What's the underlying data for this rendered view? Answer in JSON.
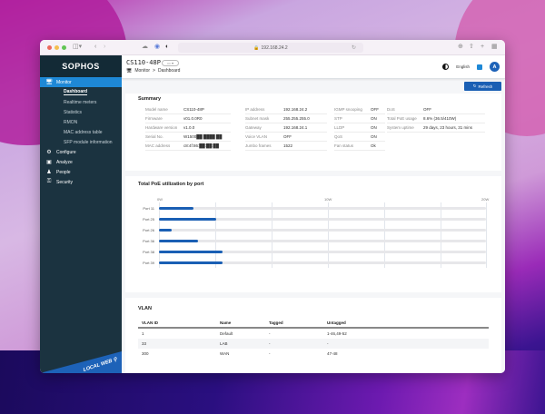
{
  "browser": {
    "url": "192.168.24.2",
    "traffic_lights": [
      "#ec6a5e",
      "#f4bf4f",
      "#61c554"
    ]
  },
  "sidebar": {
    "logo": "SOPHOS",
    "main_items": [
      {
        "label": "Monitor",
        "icon": "monitor-icon",
        "active": true
      },
      {
        "label": "Configure",
        "icon": "gear-icon"
      },
      {
        "label": "Analyze",
        "icon": "analyze-icon"
      },
      {
        "label": "People",
        "icon": "people-icon"
      },
      {
        "label": "Security",
        "icon": "key-icon"
      }
    ],
    "monitor_subitems": [
      {
        "label": "Dashboard",
        "active": true
      },
      {
        "label": "Realtime meters"
      },
      {
        "label": "Statistics"
      },
      {
        "label": "RMON"
      },
      {
        "label": "MAC address table"
      },
      {
        "label": "SFP module information"
      }
    ],
    "badge": "LOCAL WEB"
  },
  "header": {
    "device": "CS110-48P",
    "pill": "▭ ▾",
    "breadcrumb": [
      "Monitor",
      ">",
      "Dashboard"
    ],
    "language": "English",
    "avatar": "A"
  },
  "toolbar": {
    "refresh_label": "Refresh"
  },
  "summary": {
    "title": "Summary",
    "col1": [
      {
        "k": "Model name",
        "v": "CS110-48P"
      },
      {
        "k": "Firmware",
        "v": "v01.0.0R0"
      },
      {
        "k": "Hardware version",
        "v": "v1.0.0"
      },
      {
        "k": "Serial No.",
        "v": "W1500██ ████ ██"
      },
      {
        "k": "MAC address",
        "v": "c8:4f:86:██:██:██"
      }
    ],
    "col2": [
      {
        "k": "IP address",
        "v": "192.168.24.2"
      },
      {
        "k": "Subnet mask",
        "v": "255.255.255.0"
      },
      {
        "k": "Gateway",
        "v": "192.168.24.1"
      },
      {
        "k": "Voice VLAN",
        "v": "OFF"
      },
      {
        "k": "Jumbo frames",
        "v": "1522"
      }
    ],
    "col3": [
      {
        "k": "IGMP snooping",
        "v": "OFF"
      },
      {
        "k": "STP",
        "v": "ON"
      },
      {
        "k": "LLDP",
        "v": "ON"
      },
      {
        "k": "QoS",
        "v": "ON"
      },
      {
        "k": "Fan status",
        "v": "Ok"
      }
    ],
    "col4": [
      {
        "k": "DoS",
        "v": "OFF"
      },
      {
        "k": "Total PoE usage",
        "v": "8.6% (36.5/410W)"
      },
      {
        "k": "System uptime",
        "v": "29 days, 23 hours, 31 mins"
      }
    ]
  },
  "poe": {
    "title": "Total PoE utilization by port"
  },
  "chart_data": {
    "type": "bar",
    "orientation": "horizontal",
    "title": "Total PoE utilization by port",
    "categories": [
      "Port 11",
      "Port 25",
      "Port 26",
      "Port 36",
      "Port 38",
      "Port 39"
    ],
    "values": [
      2.1,
      3.5,
      0.8,
      2.4,
      3.9,
      3.9
    ],
    "unit": "W",
    "xlim": [
      0,
      20
    ],
    "xticks": [
      "0W",
      "10W",
      "20W"
    ],
    "grid": true,
    "bar_color": "#1a5fb4",
    "track_color": "#e7e7ea"
  },
  "vlan": {
    "title": "VLAN",
    "columns": [
      "VLAN ID",
      "Name",
      "Tagged",
      "Untagged"
    ],
    "rows": [
      [
        "1",
        "Default",
        "-",
        "1-46,49-52"
      ],
      [
        "33",
        "LAB",
        "-",
        "-"
      ],
      [
        "300",
        "WAN",
        "-",
        "47-48"
      ]
    ]
  }
}
